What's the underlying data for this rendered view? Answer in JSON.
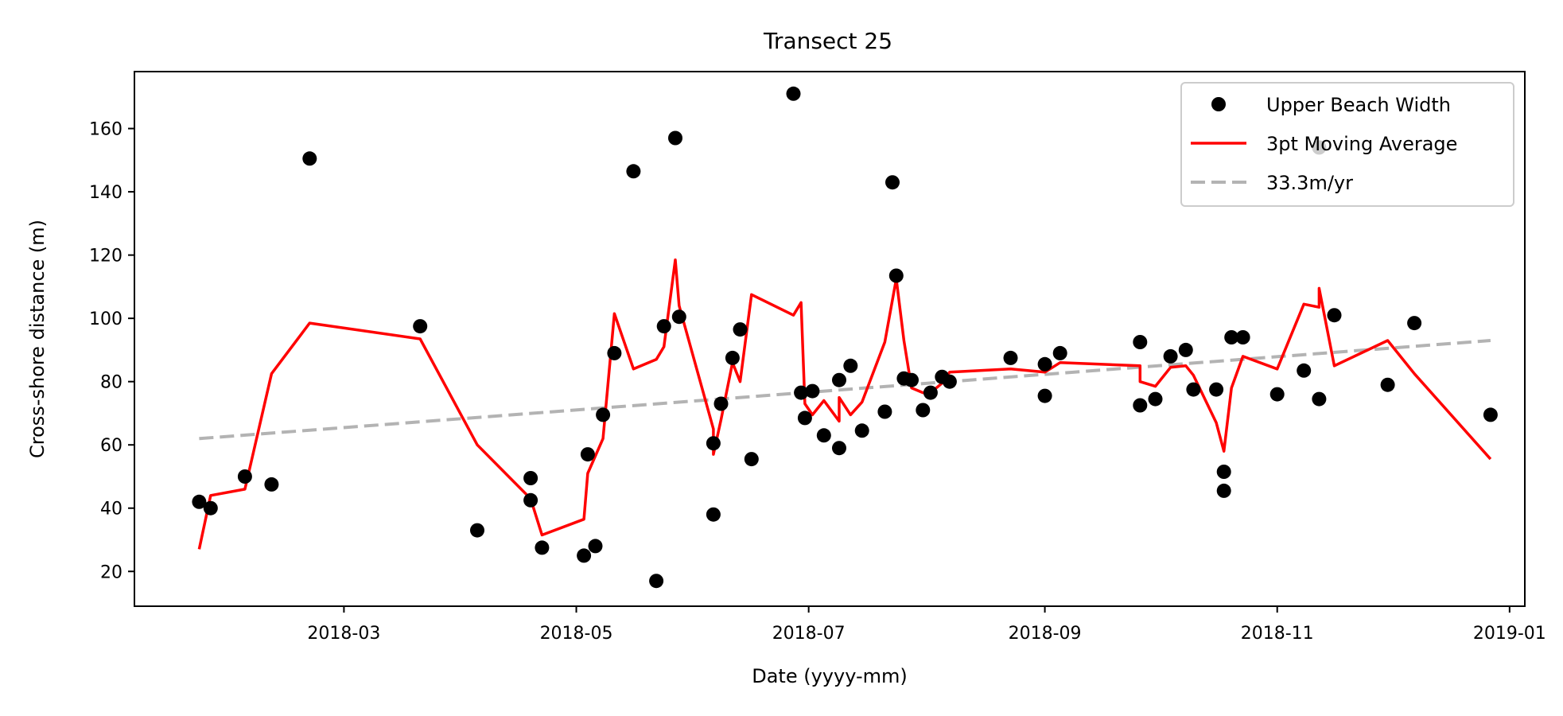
{
  "chart_data": {
    "type": "scatter",
    "title": "Transect 25",
    "xlabel": "Date (yyyy-mm)",
    "ylabel": "Cross-shore distance (m)",
    "xlim": [
      "2018-01-05",
      "2019-01-05"
    ],
    "ylim": [
      9,
      178
    ],
    "x_ticks": [
      "2018-03",
      "2018-05",
      "2018-07",
      "2018-09",
      "2018-11",
      "2019-01"
    ],
    "y_ticks": [
      20,
      40,
      60,
      80,
      100,
      120,
      140,
      160
    ],
    "grid": false,
    "legend_position": "top-right",
    "series": [
      {
        "name": "Upper Beach Width",
        "style": "markers",
        "color": "#000000",
        "points": [
          [
            "2018-01-22",
            42
          ],
          [
            "2018-01-25",
            40
          ],
          [
            "2018-02-03",
            50
          ],
          [
            "2018-02-10",
            47.5
          ],
          [
            "2018-02-20",
            150.5
          ],
          [
            "2018-03-21",
            97.5
          ],
          [
            "2018-04-05",
            33
          ],
          [
            "2018-04-19",
            49.5
          ],
          [
            "2018-04-19",
            42.5
          ],
          [
            "2018-04-22",
            27.5
          ],
          [
            "2018-05-03",
            25
          ],
          [
            "2018-05-04",
            57
          ],
          [
            "2018-05-06",
            28
          ],
          [
            "2018-05-08",
            69.5
          ],
          [
            "2018-05-11",
            89
          ],
          [
            "2018-05-16",
            146.5
          ],
          [
            "2018-05-22",
            17
          ],
          [
            "2018-05-24",
            97.5
          ],
          [
            "2018-05-27",
            157
          ],
          [
            "2018-05-28",
            100.5
          ],
          [
            "2018-06-06",
            38
          ],
          [
            "2018-06-06",
            60.5
          ],
          [
            "2018-06-08",
            73
          ],
          [
            "2018-06-11",
            87.5
          ],
          [
            "2018-06-13",
            96.5
          ],
          [
            "2018-06-16",
            55.5
          ],
          [
            "2018-06-27",
            171
          ],
          [
            "2018-06-29",
            76.5
          ],
          [
            "2018-06-30",
            68.5
          ],
          [
            "2018-07-02",
            77
          ],
          [
            "2018-07-05",
            63
          ],
          [
            "2018-07-09",
            59
          ],
          [
            "2018-07-09",
            80.5
          ],
          [
            "2018-07-12",
            85
          ],
          [
            "2018-07-15",
            64.5
          ],
          [
            "2018-07-21",
            70.5
          ],
          [
            "2018-07-23",
            143
          ],
          [
            "2018-07-24",
            113.5
          ],
          [
            "2018-07-26",
            81
          ],
          [
            "2018-07-28",
            80.5
          ],
          [
            "2018-07-31",
            71
          ],
          [
            "2018-08-02",
            76.5
          ],
          [
            "2018-08-05",
            81.5
          ],
          [
            "2018-08-07",
            80
          ],
          [
            "2018-08-23",
            87.5
          ],
          [
            "2018-09-01",
            75.5
          ],
          [
            "2018-09-01",
            85.5
          ],
          [
            "2018-09-05",
            89
          ],
          [
            "2018-09-26",
            92.5
          ],
          [
            "2018-09-26",
            72.5
          ],
          [
            "2018-09-30",
            74.5
          ],
          [
            "2018-10-04",
            88
          ],
          [
            "2018-10-08",
            90
          ],
          [
            "2018-10-10",
            77.5
          ],
          [
            "2018-10-16",
            77.5
          ],
          [
            "2018-10-18",
            51.5
          ],
          [
            "2018-10-18",
            45.5
          ],
          [
            "2018-10-20",
            94
          ],
          [
            "2018-10-23",
            94
          ],
          [
            "2018-11-01",
            76
          ],
          [
            "2018-11-08",
            83.5
          ],
          [
            "2018-11-12",
            74.5
          ],
          [
            "2018-11-12",
            154
          ],
          [
            "2018-11-16",
            101
          ],
          [
            "2018-11-30",
            79
          ],
          [
            "2018-12-07",
            98.5
          ],
          [
            "2018-12-27",
            69.5
          ]
        ]
      },
      {
        "name": "3pt Moving Average",
        "style": "line",
        "color": "#ff0000",
        "points": [
          [
            "2018-01-22",
            27
          ],
          [
            "2018-01-25",
            44
          ],
          [
            "2018-02-03",
            46
          ],
          [
            "2018-02-10",
            82.5
          ],
          [
            "2018-02-20",
            98.5
          ],
          [
            "2018-03-21",
            93.5
          ],
          [
            "2018-04-05",
            60
          ],
          [
            "2018-04-19",
            43
          ],
          [
            "2018-04-22",
            31.5
          ],
          [
            "2018-05-03",
            36.5
          ],
          [
            "2018-05-04",
            51
          ],
          [
            "2018-05-08",
            62
          ],
          [
            "2018-05-11",
            101.5
          ],
          [
            "2018-05-16",
            84
          ],
          [
            "2018-05-22",
            87
          ],
          [
            "2018-05-24",
            91
          ],
          [
            "2018-05-27",
            118.5
          ],
          [
            "2018-05-28",
            104
          ],
          [
            "2018-06-06",
            65
          ],
          [
            "2018-06-06",
            57
          ],
          [
            "2018-06-08",
            68
          ],
          [
            "2018-06-11",
            86
          ],
          [
            "2018-06-13",
            80
          ],
          [
            "2018-06-16",
            107.5
          ],
          [
            "2018-06-27",
            101
          ],
          [
            "2018-06-29",
            105
          ],
          [
            "2018-06-30",
            73
          ],
          [
            "2018-07-02",
            69.5
          ],
          [
            "2018-07-05",
            74
          ],
          [
            "2018-07-09",
            67.5
          ],
          [
            "2018-07-09",
            75
          ],
          [
            "2018-07-12",
            69.5
          ],
          [
            "2018-07-15",
            73.5
          ],
          [
            "2018-07-21",
            92.5
          ],
          [
            "2018-07-24",
            112.5
          ],
          [
            "2018-07-26",
            93
          ],
          [
            "2018-07-28",
            78
          ],
          [
            "2018-07-31",
            76.5
          ],
          [
            "2018-08-02",
            76.5
          ],
          [
            "2018-08-05",
            79.5
          ],
          [
            "2018-08-07",
            83
          ],
          [
            "2018-08-23",
            84
          ],
          [
            "2018-09-01",
            83
          ],
          [
            "2018-09-05",
            86
          ],
          [
            "2018-09-26",
            85
          ],
          [
            "2018-09-26",
            80
          ],
          [
            "2018-09-30",
            78.5
          ],
          [
            "2018-10-04",
            84.5
          ],
          [
            "2018-10-08",
            85
          ],
          [
            "2018-10-10",
            82
          ],
          [
            "2018-10-16",
            67
          ],
          [
            "2018-10-18",
            58
          ],
          [
            "2018-10-20",
            78
          ],
          [
            "2018-10-23",
            88
          ],
          [
            "2018-11-01",
            84
          ],
          [
            "2018-11-08",
            104.5
          ],
          [
            "2018-11-12",
            103.5
          ],
          [
            "2018-11-12",
            109.5
          ],
          [
            "2018-11-16",
            85
          ],
          [
            "2018-11-30",
            93
          ],
          [
            "2018-12-07",
            82.5
          ],
          [
            "2018-12-27",
            55.5
          ]
        ]
      },
      {
        "name": "33.3m/yr",
        "style": "dashed-line",
        "color": "#b3b3b3",
        "points": [
          [
            "2018-01-22",
            62
          ],
          [
            "2018-12-27",
            93
          ]
        ]
      }
    ]
  }
}
